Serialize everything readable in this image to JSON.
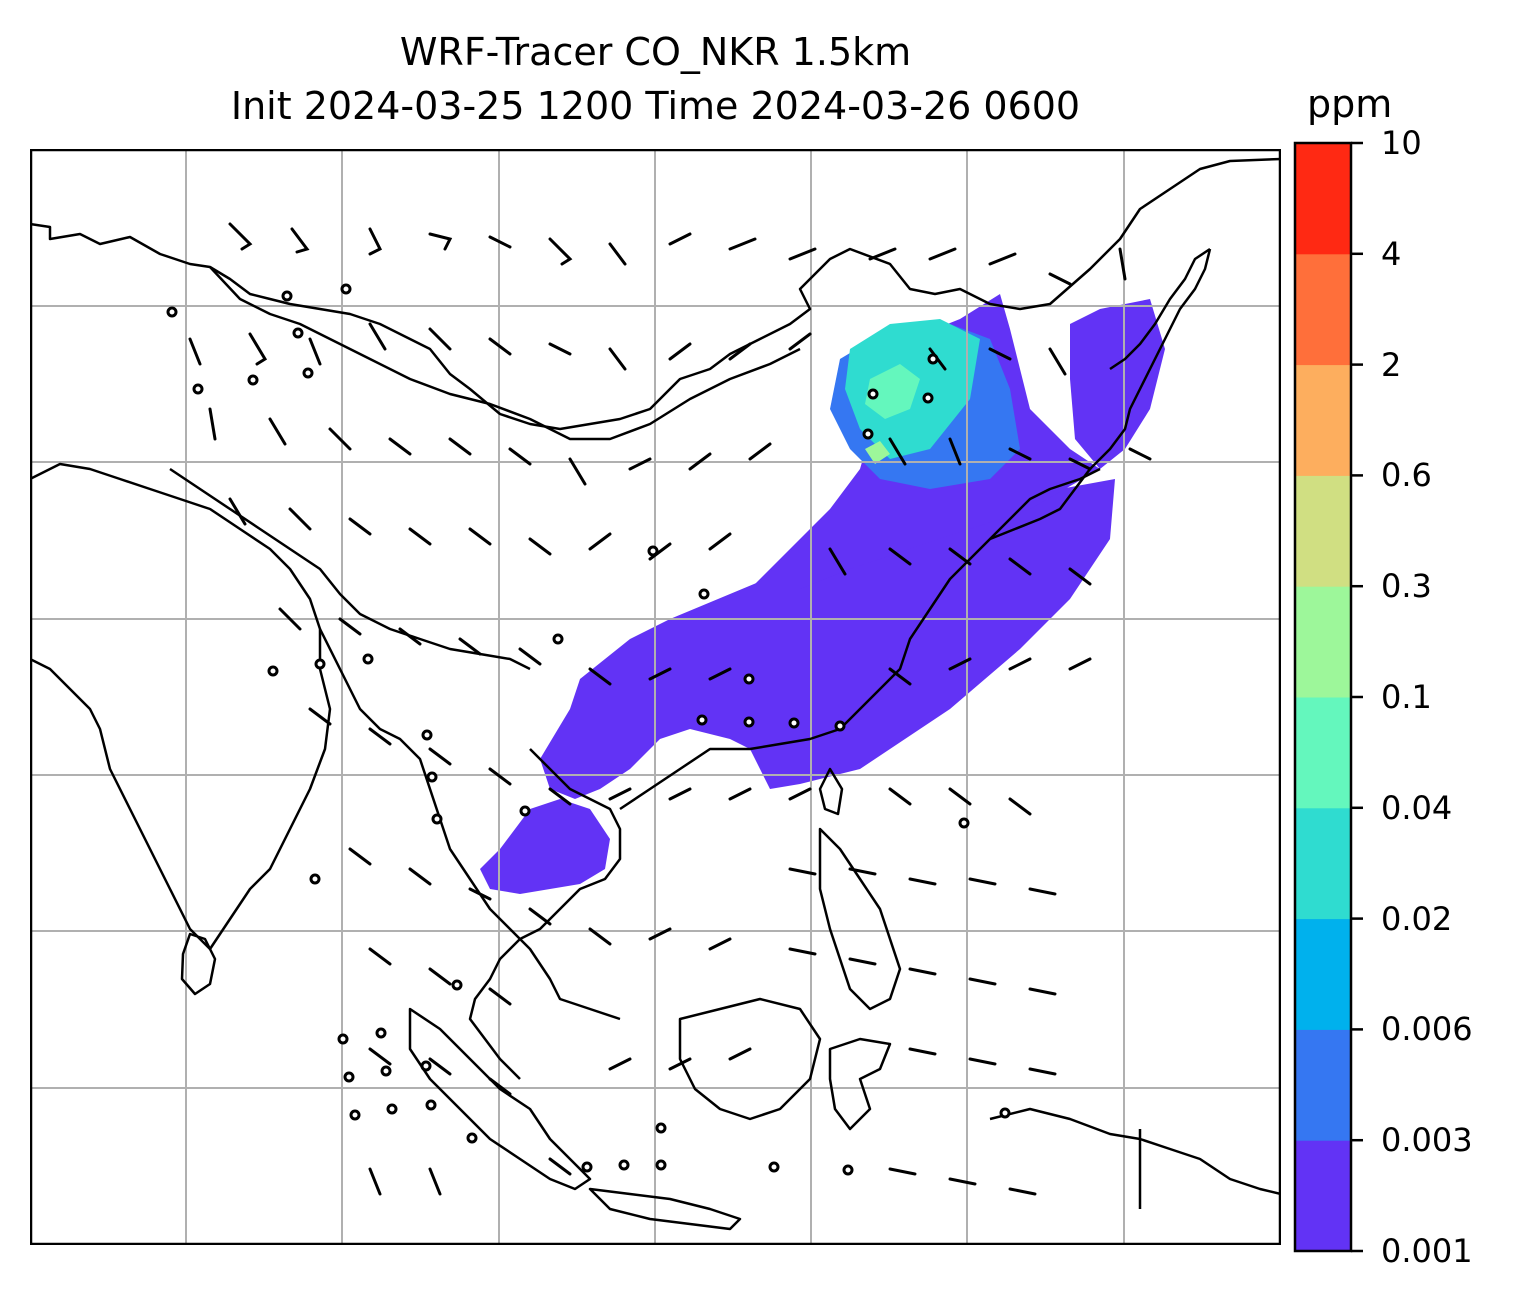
{
  "title": {
    "line1": "WRF-Tracer CO_NKR 1.5km",
    "line2": "Init 2024-03-25 1200 Time 2024-03-26 0600"
  },
  "colorbar": {
    "unit": "ppm",
    "tick_labels": [
      "0.001",
      "0.003",
      "0.006",
      "0.02",
      "0.04",
      "0.1",
      "0.3",
      "0.6",
      "2",
      "4",
      "10"
    ],
    "bin_colors": [
      "#6233f5",
      "#3577f2",
      "#00b1ed",
      "#2fdcd0",
      "#64f7bd",
      "#9df79a",
      "#d0df82",
      "#fdae5e",
      "#ff6f3a",
      "#ff2913"
    ]
  },
  "map": {
    "background": "#ffffff",
    "coastline_color": "#000000",
    "gridline_color": "#b0b0b0",
    "wind_barb_color": "#000000",
    "plume_lowest_color": "#6233f5"
  }
}
